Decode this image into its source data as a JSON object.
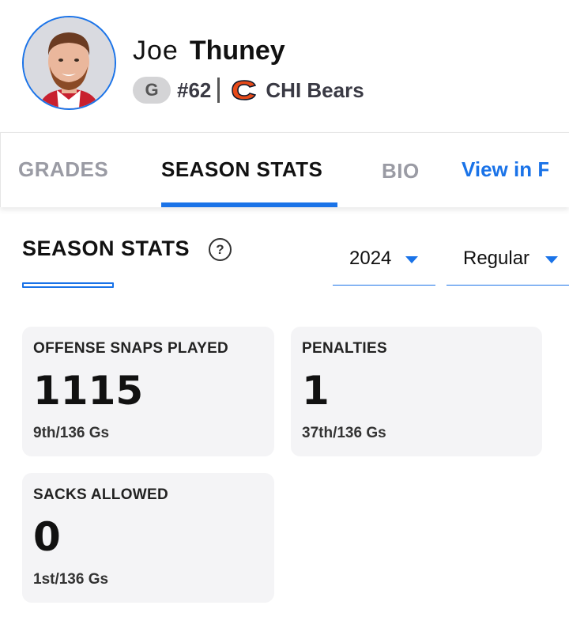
{
  "player": {
    "first_name": "Joe",
    "last_name": "Thuney",
    "position": "G",
    "jersey": "#62",
    "team": "CHI Bears"
  },
  "tabs": [
    {
      "label": "GRADES",
      "active": false
    },
    {
      "label": "SEASON STATS",
      "active": true
    },
    {
      "label": "BIO",
      "active": false
    },
    {
      "label": "View in F",
      "active": false
    }
  ],
  "section": {
    "title": "SEASON STATS",
    "help_icon": "question-icon"
  },
  "filters": {
    "year": "2024",
    "season_type": "Regular"
  },
  "stats": [
    {
      "label": "OFFENSE SNAPS PLAYED",
      "value": "1115",
      "rank": "9th/136 Gs"
    },
    {
      "label": "PENALTIES",
      "value": "1",
      "rank": "37th/136 Gs"
    },
    {
      "label": "SACKS ALLOWED",
      "value": "0",
      "rank": "1st/136 Gs"
    }
  ],
  "colors": {
    "accent": "#1a73e8",
    "bears_orange": "#e64a19",
    "card_bg": "#f4f4f6"
  }
}
